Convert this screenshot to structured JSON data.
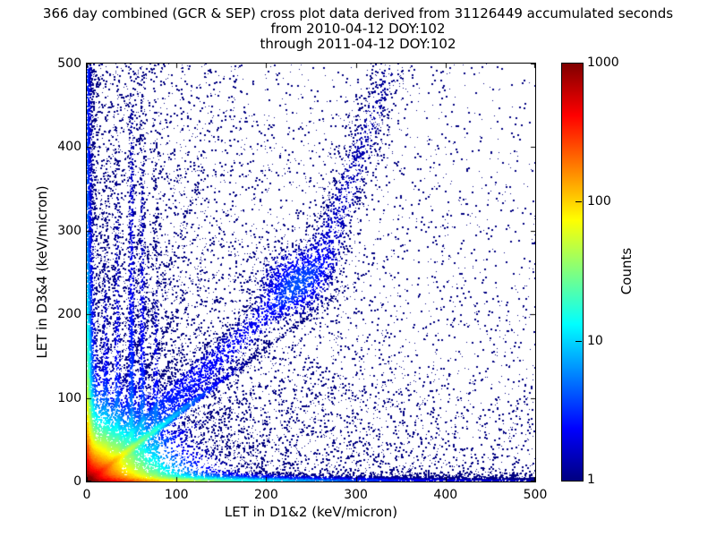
{
  "title": {
    "line1": "366 day combined (GCR & SEP) cross plot data derived from 31126449 accumulated seconds",
    "line2": "from 2010-04-12 DOY:102",
    "line3": "through 2011-04-12 DOY:102"
  },
  "chart_data": {
    "type": "heatmap",
    "title": "366 day combined (GCR & SEP) cross plot data derived from 31126449 accumulated seconds from 2010-04-12 DOY:102 through 2011-04-12 DOY:102",
    "xlabel": "LET in D1&2 (keV/micron)",
    "ylabel": "LET in D3&4 (keV/micron)",
    "xlim": [
      0,
      500
    ],
    "ylim": [
      0,
      500
    ],
    "xticks": [
      "0",
      "100",
      "200",
      "300",
      "400",
      "500"
    ],
    "yticks": [
      "0",
      "100",
      "200",
      "300",
      "400",
      "500"
    ],
    "grid": false,
    "base_point_color": "#000080",
    "colorbar": {
      "label": "Counts",
      "scale": "log",
      "min": 1,
      "max": 1000,
      "ticks": [
        "1",
        "10",
        "100",
        "1000"
      ],
      "colormap": "jet",
      "stops": [
        "#000080",
        "#0000ff",
        "#00ffff",
        "#ffff00",
        "#ff0000",
        "#800000"
      ],
      "stop_positions": [
        0,
        12.5,
        37.5,
        62.5,
        87.5,
        100
      ]
    },
    "density_terms": [
      {
        "type": "expxy",
        "a": 0.35,
        "sx": 100000,
        "sy": 100000
      },
      {
        "type": "expxy",
        "a": 1.0,
        "sx": 150,
        "sy": 260
      },
      {
        "type": "expxy",
        "a": 900,
        "sx": 24,
        "sy": 19
      },
      {
        "type": "expxy",
        "a": 300,
        "sx": 62,
        "sy": 2.3
      },
      {
        "type": "expxy",
        "a": 2.4,
        "sx": 700,
        "sy": 2.8
      },
      {
        "type": "expxy",
        "a": 260,
        "sx": 2.3,
        "sy": 58
      },
      {
        "type": "expxy",
        "a": 8,
        "sx": 2.6,
        "sy": 190
      },
      {
        "type": "expxy",
        "a": 2.2,
        "sx": 3.0,
        "sy": 100000
      },
      {
        "type": "streakd",
        "a": 130,
        "m": 0.8,
        "sigma": 2.6,
        "ts": 42
      },
      {
        "type": "streakd",
        "a": 26,
        "m": 0.55,
        "sigma": 2.0,
        "ts": 36
      },
      {
        "type": "streakd",
        "a": 26,
        "m": 1.15,
        "sigma": 2.0,
        "ts": 36
      },
      {
        "type": "streakd",
        "a": 22,
        "m": 1.5,
        "sigma": 2.0,
        "ts": 34
      },
      {
        "type": "streakd",
        "a": 20,
        "m": 2.05,
        "sigma": 2.0,
        "ts": 32
      },
      {
        "type": "streakd",
        "a": 18,
        "m": 2.9,
        "sigma": 2.0,
        "ts": 30
      },
      {
        "type": "curved",
        "a": 2.6,
        "knee": 260,
        "comp": 0.33,
        "sigma": 15,
        "ts": 420
      },
      {
        "type": "blobd",
        "a": 2.2,
        "cx": 232,
        "cy": 238,
        "s": 26
      },
      {
        "type": "vlined",
        "a": 4.0,
        "cx": 20,
        "s": 2,
        "sy": 130
      },
      {
        "type": "vlined",
        "a": 3.5,
        "cx": 33,
        "s": 2,
        "sy": 200
      },
      {
        "type": "vlined",
        "a": 4.5,
        "cx": 49,
        "s": 2,
        "sy": 260
      },
      {
        "type": "vlined",
        "a": 4.0,
        "cx": 61,
        "s": 2,
        "sy": 220
      },
      {
        "type": "vlined",
        "a": 3.0,
        "cx": 76,
        "s": 2,
        "sy": 160
      }
    ],
    "components": [
      {
        "type": "uniform",
        "n": 1800
      },
      {
        "type": "exp2",
        "n": 4500,
        "tx": 120,
        "ty": 420
      },
      {
        "type": "exp2",
        "n": 3000,
        "tx": 420,
        "ty": 100
      },
      {
        "type": "exp2",
        "n": 3000,
        "tx": 200,
        "ty": 3
      },
      {
        "type": "exp2",
        "n": 1600,
        "tx": 0,
        "ty": 2.6
      },
      {
        "type": "exp2",
        "n": 2500,
        "tx": 3,
        "ty": 160
      },
      {
        "type": "exp2",
        "n": 1300,
        "tx": 2.6,
        "ty": 0
      },
      {
        "type": "exp2",
        "n": 3500,
        "tx": 22,
        "ty": 17
      },
      {
        "type": "streak",
        "n": 2000,
        "m": 0.8,
        "sigma": 2.5,
        "tt": 70
      },
      {
        "type": "streak",
        "n": 560,
        "m": 0.55,
        "sigma": 2.0,
        "tt": 48
      },
      {
        "type": "streak",
        "n": 560,
        "m": 1.15,
        "sigma": 2.0,
        "tt": 48
      },
      {
        "type": "streak",
        "n": 520,
        "m": 1.5,
        "sigma": 2.0,
        "tt": 44
      },
      {
        "type": "streak",
        "n": 500,
        "m": 2.05,
        "sigma": 2.0,
        "tt": 40
      },
      {
        "type": "streak",
        "n": 450,
        "m": 2.9,
        "sigma": 2.0,
        "tt": 36
      },
      {
        "type": "curveband",
        "n": 3400,
        "knee": 260,
        "comp": 0.33,
        "sigma": 13,
        "tt": 330
      },
      {
        "type": "blob",
        "n": 1100,
        "cx": 232,
        "cy": 238,
        "s": 24
      },
      {
        "type": "vline",
        "n": 500,
        "cx": 20,
        "s": 1.8,
        "ty": 130
      },
      {
        "type": "vline",
        "n": 460,
        "cx": 33,
        "s": 1.8,
        "ty": 210
      },
      {
        "type": "vline",
        "n": 820,
        "cx": 49,
        "s": 1.8,
        "ty": 270
      },
      {
        "type": "vline",
        "n": 600,
        "cx": 61,
        "s": 1.8,
        "ty": 230
      },
      {
        "type": "vline",
        "n": 360,
        "cx": 76,
        "s": 1.8,
        "ty": 170
      }
    ]
  }
}
